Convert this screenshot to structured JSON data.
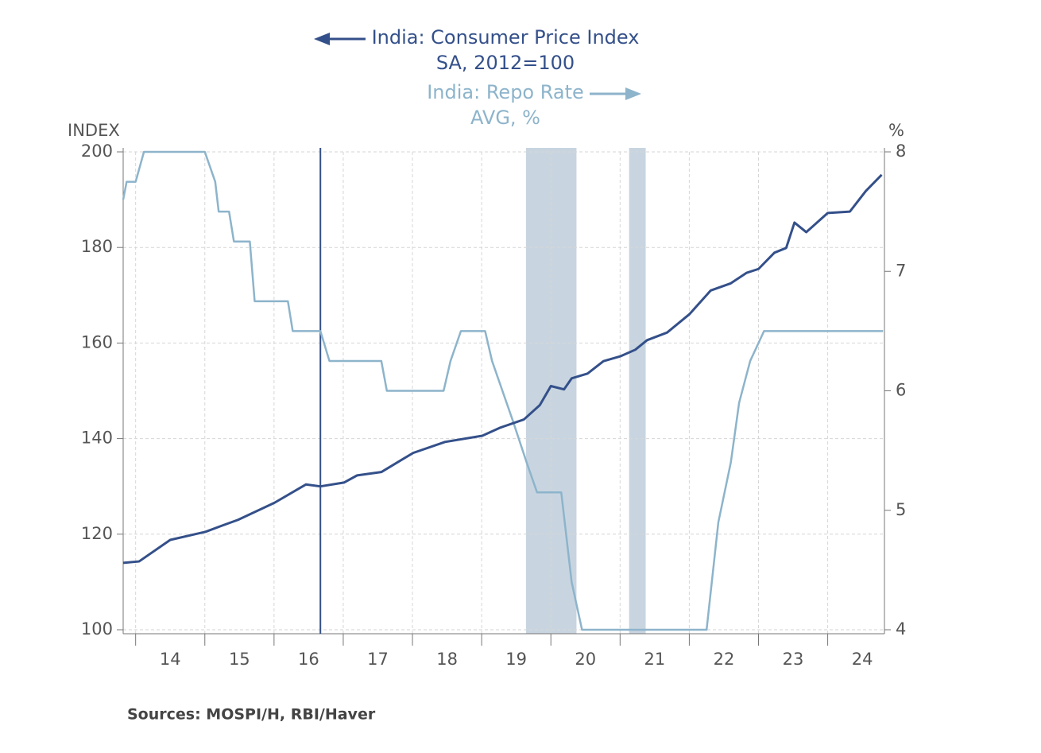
{
  "chart_data": {
    "type": "line",
    "y_axis_label": "INDEX",
    "y2_axis_label": "%",
    "source": "Sources:  MOSPI/H, RBI/Haver",
    "xlim": [
      2013.82,
      2024.82
    ],
    "xticks": [
      {
        "value": 2014,
        "label": "14"
      },
      {
        "value": 2015,
        "label": "15"
      },
      {
        "value": 2016,
        "label": "16"
      },
      {
        "value": 2017,
        "label": "17"
      },
      {
        "value": 2018,
        "label": "18"
      },
      {
        "value": 2019,
        "label": "19"
      },
      {
        "value": 2020,
        "label": "20"
      },
      {
        "value": 2021,
        "label": "21"
      },
      {
        "value": 2022,
        "label": "22"
      },
      {
        "value": 2023,
        "label": "23"
      },
      {
        "value": 2024,
        "label": "24"
      }
    ],
    "ylim": [
      100,
      200
    ],
    "yticks": [
      100,
      120,
      140,
      160,
      180,
      200
    ],
    "y2lim": [
      4,
      8
    ],
    "y2ticks": [
      4,
      5,
      6,
      7,
      8
    ],
    "grid": true,
    "shaded_periods": [
      [
        2019.64,
        2020.37
      ],
      [
        2021.13,
        2021.37
      ]
    ],
    "vline": 2016.67,
    "series": [
      {
        "name": "India: Consumer Price Index",
        "subtitle": "SA, 2012=100",
        "color": "#34508a",
        "axis": "y",
        "x": [
          2013.82,
          2014.05,
          2014.5,
          2015.01,
          2015.25,
          2015.48,
          2016.01,
          2016.46,
          2016.67,
          2017.01,
          2017.2,
          2017.55,
          2018.01,
          2018.47,
          2019.01,
          2019.27,
          2019.61,
          2019.84,
          2020.0,
          2020.19,
          2020.3,
          2020.53,
          2020.76,
          2021.0,
          2021.22,
          2021.39,
          2021.68,
          2022.0,
          2022.31,
          2022.6,
          2022.83,
          2023.0,
          2023.23,
          2023.4,
          2023.52,
          2023.69,
          2024.0,
          2024.32,
          2024.55,
          2024.78
        ],
        "values": [
          114,
          114.3,
          118.8,
          120.5,
          121.8,
          123,
          126.6,
          130.4,
          130,
          130.8,
          132.3,
          133,
          137,
          139.3,
          140.6,
          142.3,
          144,
          147,
          151,
          150.3,
          152.6,
          153.6,
          156.2,
          157.2,
          158.6,
          160.6,
          162.2,
          166,
          171,
          172.5,
          174.7,
          175.5,
          178.9,
          179.9,
          185.2,
          183.2,
          187.2,
          187.5,
          191.8,
          195.2
        ]
      },
      {
        "name": "India: Repo Rate",
        "subtitle": "AVG, %",
        "color": "#8db4cb",
        "axis": "y2",
        "x": [
          2013.82,
          2013.87,
          2014.0,
          2014.12,
          2015.0,
          2015.15,
          2015.2,
          2015.35,
          2015.42,
          2015.65,
          2015.72,
          2016.2,
          2016.27,
          2016.67,
          2016.8,
          2017.55,
          2017.63,
          2018.45,
          2018.55,
          2018.7,
          2019.05,
          2019.15,
          2019.3,
          2019.45,
          2019.65,
          2019.8,
          2020.15,
          2020.3,
          2020.45,
          2022.25,
          2022.42,
          2022.6,
          2022.72,
          2022.88,
          2023.08,
          2024.8
        ],
        "values": [
          7.6,
          7.75,
          7.75,
          8,
          8,
          7.75,
          7.5,
          7.5,
          7.25,
          7.25,
          6.75,
          6.75,
          6.5,
          6.5,
          6.25,
          6.25,
          6,
          6,
          6.25,
          6.5,
          6.5,
          6.25,
          6,
          5.75,
          5.4,
          5.15,
          5.15,
          4.4,
          4,
          4,
          4.9,
          5.4,
          5.9,
          6.25,
          6.5,
          6.5
        ]
      }
    ]
  }
}
